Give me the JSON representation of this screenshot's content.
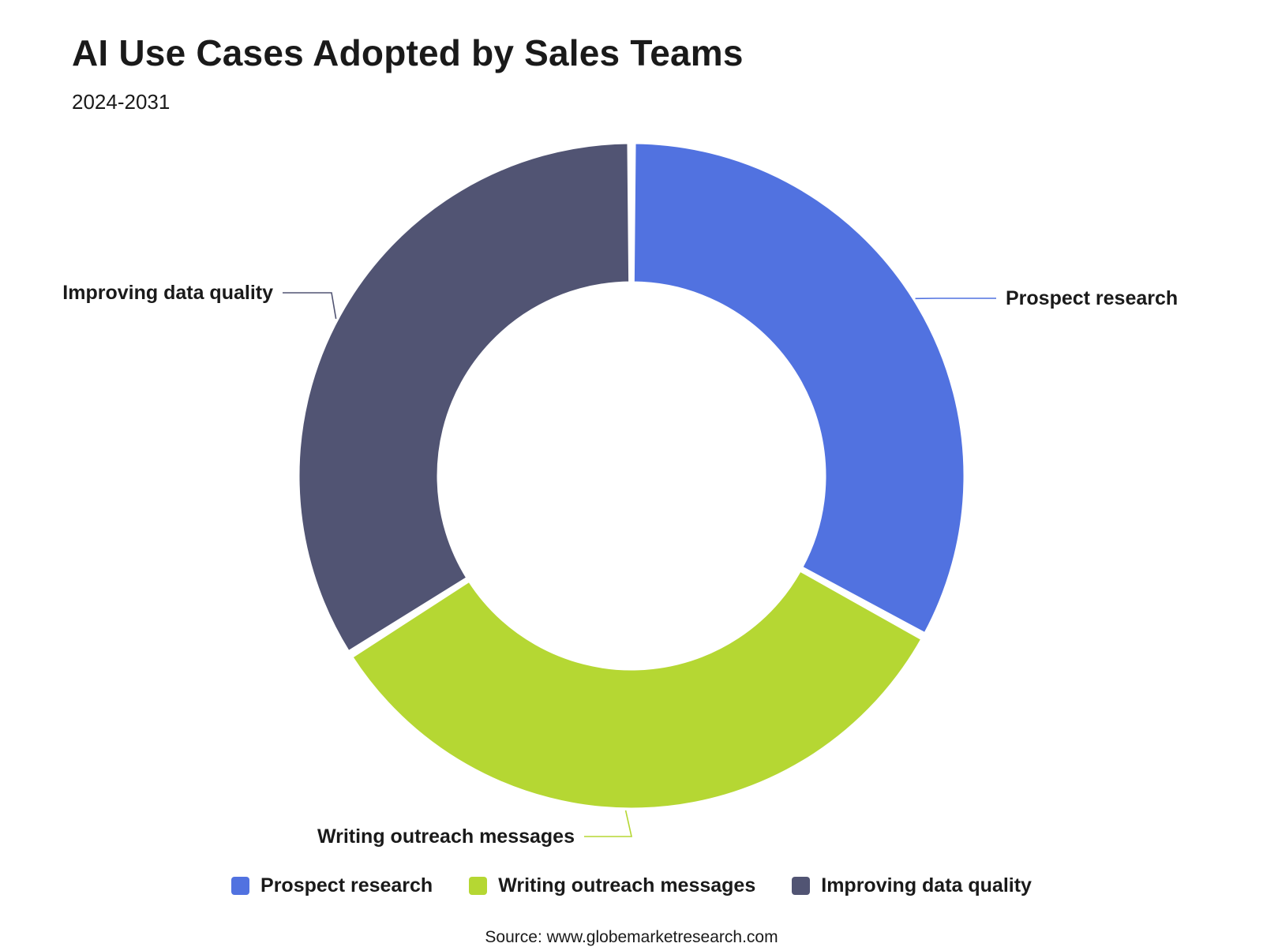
{
  "header": {
    "title": "AI Use Cases Adopted by Sales Teams",
    "subtitle": "2024-2031"
  },
  "chart_data": {
    "type": "pie",
    "variant": "donut",
    "title": "AI Use Cases Adopted by Sales Teams",
    "subtitle": "2024-2031",
    "categories": [
      "Prospect research",
      "Writing outreach messages",
      "Improving data quality"
    ],
    "values": [
      33,
      33,
      34
    ],
    "colors": [
      "#5172E0",
      "#B5D733",
      "#515473"
    ],
    "legend_position": "bottom"
  },
  "legend": {
    "items": [
      {
        "label": "Prospect research",
        "color": "#5172E0"
      },
      {
        "label": "Writing outreach messages",
        "color": "#B5D733"
      },
      {
        "label": "Improving data quality",
        "color": "#515473"
      }
    ]
  },
  "footer": {
    "source": "Source: www.globemarketresearch.com"
  }
}
